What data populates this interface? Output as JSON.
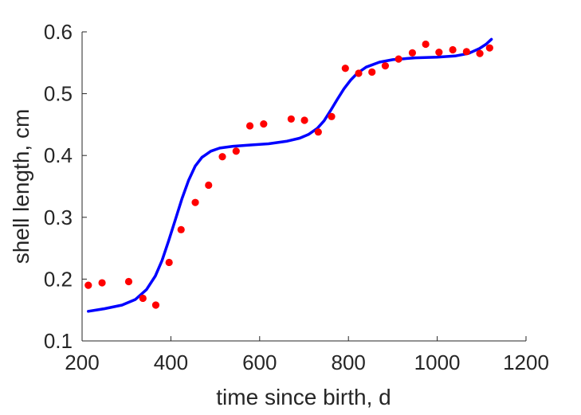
{
  "chart_data": {
    "type": "scatter",
    "title": "",
    "xlabel": "time since birth, d",
    "ylabel": "shell length, cm",
    "xlim": [
      200,
      1200
    ],
    "ylim": [
      0.1,
      0.6
    ],
    "xticks": [
      200,
      400,
      600,
      800,
      1000,
      1200
    ],
    "yticks": [
      0.1,
      0.2,
      0.3,
      0.4,
      0.5,
      0.6
    ],
    "xtick_labels": [
      "200",
      "400",
      "600",
      "800",
      "1000",
      "1200"
    ],
    "ytick_labels": [
      "0.1",
      "0.2",
      "0.3",
      "0.4",
      "0.5",
      "0.6"
    ],
    "grid": false,
    "legend": "none",
    "series": [
      {
        "kind": "scatter",
        "color": "#ff0000",
        "x": [
          214,
          245,
          305,
          337,
          366,
          396,
          423,
          455,
          485,
          516,
          547,
          578,
          609,
          671,
          701,
          732,
          762,
          793,
          823,
          853,
          883,
          913,
          944,
          974,
          1004,
          1035,
          1066,
          1096,
          1118
        ],
        "y": [
          0.19,
          0.194,
          0.196,
          0.169,
          0.158,
          0.227,
          0.28,
          0.324,
          0.352,
          0.398,
          0.407,
          0.448,
          0.451,
          0.459,
          0.457,
          0.438,
          0.463,
          0.541,
          0.533,
          0.535,
          0.545,
          0.556,
          0.566,
          0.58,
          0.567,
          0.571,
          0.568,
          0.565,
          0.574
        ]
      },
      {
        "kind": "line",
        "color": "#0000ff",
        "x": [
          214,
          250,
          290,
          320,
          345,
          365,
          380,
          395,
          410,
          425,
          440,
          455,
          470,
          490,
          510,
          540,
          580,
          620,
          660,
          690,
          710,
          730,
          745,
          760,
          775,
          790,
          805,
          820,
          840,
          870,
          900,
          950,
          1000,
          1040,
          1070,
          1095,
          1110,
          1122
        ],
        "y": [
          0.148,
          0.152,
          0.158,
          0.167,
          0.183,
          0.205,
          0.23,
          0.262,
          0.296,
          0.33,
          0.36,
          0.383,
          0.397,
          0.407,
          0.412,
          0.415,
          0.417,
          0.419,
          0.423,
          0.428,
          0.434,
          0.444,
          0.456,
          0.473,
          0.491,
          0.508,
          0.522,
          0.533,
          0.543,
          0.551,
          0.555,
          0.558,
          0.559,
          0.561,
          0.565,
          0.573,
          0.58,
          0.588
        ]
      }
    ]
  }
}
